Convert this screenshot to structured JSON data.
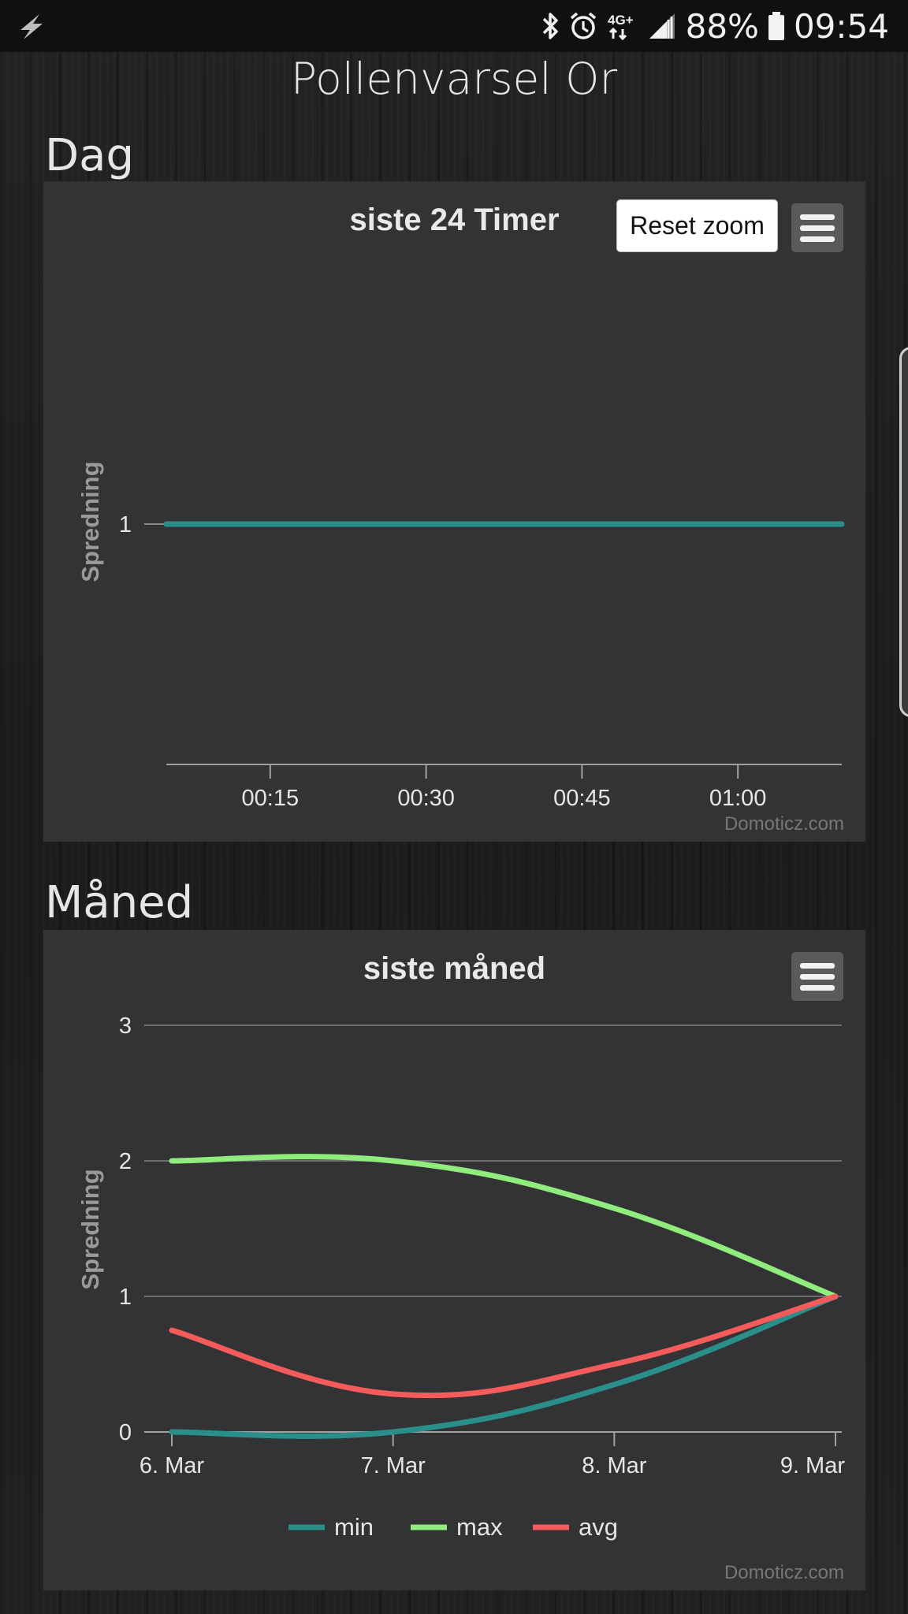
{
  "status_bar": {
    "battery": "88%",
    "time": "09:54",
    "network": "4G+",
    "icons": [
      "flash-icon",
      "bluetooth-icon",
      "alarm-icon",
      "network-4g-icon",
      "signal-icon",
      "battery-icon"
    ]
  },
  "page": {
    "title": "Pollenvarsel Or"
  },
  "sections": {
    "day": {
      "heading": "Dag",
      "reset_zoom_label": "Reset zoom",
      "credits": "Domoticz.com"
    },
    "month": {
      "heading": "Måned",
      "credits": "Domoticz.com"
    }
  },
  "chart_data": [
    {
      "type": "line",
      "title": "siste 24 Timer",
      "ylabel": "Spredning",
      "xlabel": "",
      "x_tick_labels": [
        "00:15",
        "00:30",
        "00:45",
        "01:00"
      ],
      "y_tick_labels": [
        "1"
      ],
      "x": [
        "00:05",
        "01:10"
      ],
      "series": [
        {
          "color": "#2a8f8a",
          "values": [
            1,
            1
          ]
        }
      ],
      "ylim": [
        0,
        2
      ],
      "grid": false
    },
    {
      "type": "line",
      "title": "siste måned",
      "ylabel": "Spredning",
      "xlabel": "",
      "categories": [
        "6. Mar",
        "7. Mar",
        "8. Mar",
        "9. Mar"
      ],
      "y_tick_labels": [
        "0",
        "1",
        "2",
        "3"
      ],
      "ylim": [
        0,
        3
      ],
      "grid": true,
      "legend_position": "bottom-center",
      "series": [
        {
          "name": "min",
          "color": "#2a8f8a",
          "values": [
            0,
            0,
            0.35,
            1
          ]
        },
        {
          "name": "max",
          "color": "#90ed7d",
          "values": [
            2,
            2,
            1.65,
            1
          ]
        },
        {
          "name": "avg",
          "color": "#f45b5b",
          "values": [
            0.75,
            0.28,
            0.5,
            1
          ]
        }
      ]
    }
  ]
}
